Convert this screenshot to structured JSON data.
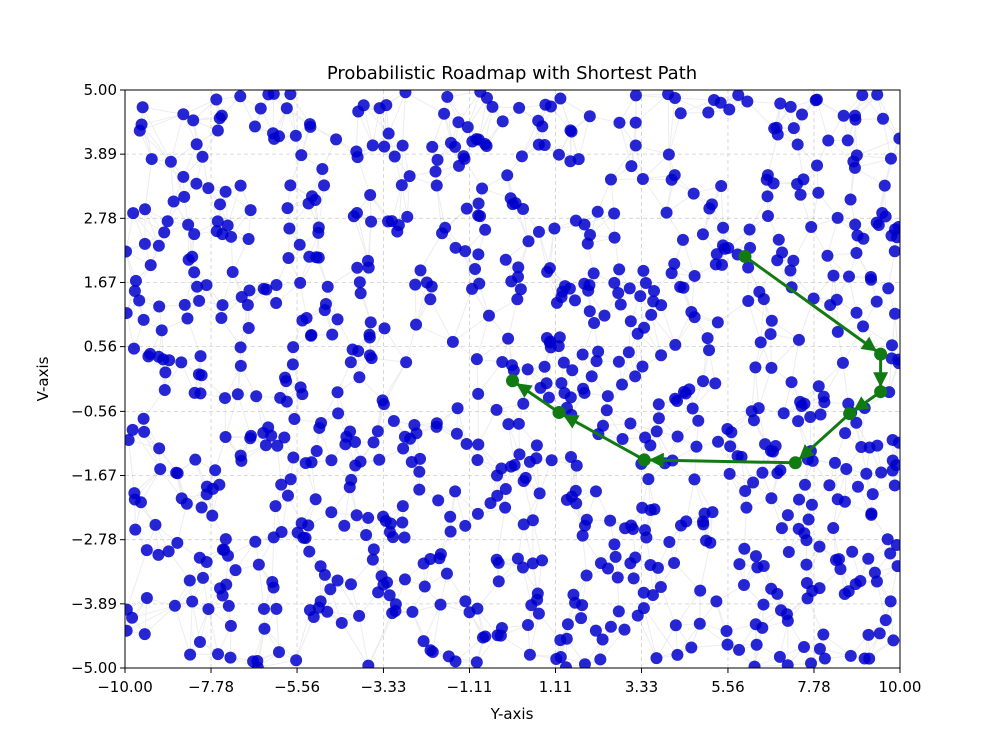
{
  "chart_data": {
    "type": "scatter",
    "title": "Probabilistic Roadmap with Shortest Path",
    "xlabel": "Y-axis",
    "ylabel": "V-axis",
    "xlim": [
      -10,
      10
    ],
    "ylim": [
      -5,
      5
    ],
    "xticks": [
      -10.0,
      -7.78,
      -5.56,
      -3.33,
      -1.11,
      1.11,
      3.33,
      5.56,
      7.78,
      10.0
    ],
    "xtick_labels": [
      "−10.00",
      "−7.78",
      "−5.56",
      "−3.33",
      "−1.11",
      "1.11",
      "3.33",
      "5.56",
      "7.78",
      "10.00"
    ],
    "yticks": [
      5.0,
      3.89,
      2.78,
      1.67,
      0.56,
      -0.56,
      -1.67,
      -2.78,
      -3.89,
      -5.0
    ],
    "ytick_labels": [
      "5.00",
      "3.89",
      "2.78",
      "1.67",
      "0.56",
      "−0.56",
      "−1.67",
      "−2.78",
      "−3.89",
      "−5.00"
    ],
    "grid": true,
    "colors": {
      "nodes": "#0000cc",
      "edges": "#808080",
      "path": "#127a12"
    },
    "roadmap_nodes": {
      "count_approx": 900,
      "seed": 20240611
    },
    "roadmap_edges": {
      "k_neighbors": 5
    },
    "shortest_path": [
      {
        "x": 6.0,
        "y": 2.12
      },
      {
        "x": 9.5,
        "y": 0.43
      },
      {
        "x": 9.5,
        "y": -0.22
      },
      {
        "x": 8.7,
        "y": -0.6
      },
      {
        "x": 7.3,
        "y": -1.45
      },
      {
        "x": 3.4,
        "y": -1.4
      },
      {
        "x": 1.2,
        "y": -0.58
      },
      {
        "x": 0.0,
        "y": -0.03
      }
    ]
  }
}
